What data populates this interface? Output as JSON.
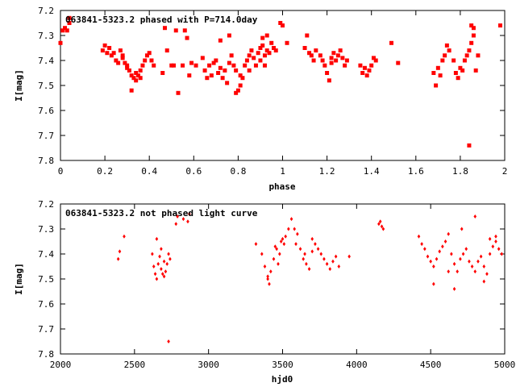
{
  "chart_data": [
    {
      "type": "scatter",
      "title": "063841-5323.2 phased with P=714.0day",
      "xlabel": "phase",
      "ylabel": "I[mag]",
      "xlim": [
        0,
        2
      ],
      "ylim": [
        7.2,
        7.8
      ],
      "y_inverted": true,
      "grid": false,
      "legend": "none",
      "marker": "filled-square-large",
      "color": "#ff0000",
      "x_ticks": [
        "0",
        "0.2",
        "0.4",
        "0.6",
        "0.8",
        "1",
        "1.2",
        "1.4",
        "1.6",
        "1.8",
        "2"
      ],
      "y_ticks": [
        "7.2",
        "7.3",
        "7.4",
        "7.5",
        "7.6",
        "7.7",
        "7.8"
      ],
      "points": [
        [
          0.0,
          7.33
        ],
        [
          0.01,
          7.28
        ],
        [
          0.02,
          7.27
        ],
        [
          0.03,
          7.28
        ],
        [
          0.04,
          7.25
        ],
        [
          0.04,
          7.23
        ],
        [
          0.19,
          7.36
        ],
        [
          0.2,
          7.34
        ],
        [
          0.21,
          7.37
        ],
        [
          0.22,
          7.35
        ],
        [
          0.23,
          7.38
        ],
        [
          0.24,
          7.37
        ],
        [
          0.25,
          7.4
        ],
        [
          0.26,
          7.41
        ],
        [
          0.27,
          7.36
        ],
        [
          0.28,
          7.39
        ],
        [
          0.29,
          7.41
        ],
        [
          0.3,
          7.43
        ],
        [
          0.31,
          7.44
        ],
        [
          0.32,
          7.46
        ],
        [
          0.33,
          7.47
        ],
        [
          0.34,
          7.48
        ],
        [
          0.35,
          7.46
        ],
        [
          0.36,
          7.44
        ],
        [
          0.37,
          7.42
        ],
        [
          0.38,
          7.4
        ],
        [
          0.39,
          7.38
        ],
        [
          0.4,
          7.37
        ],
        [
          0.41,
          7.4
        ],
        [
          0.42,
          7.42
        ],
        [
          0.32,
          7.52
        ],
        [
          0.34,
          7.45
        ],
        [
          0.36,
          7.47
        ],
        [
          0.3,
          7.42
        ],
        [
          0.28,
          7.38
        ],
        [
          0.46,
          7.45
        ],
        [
          0.47,
          7.27
        ],
        [
          0.48,
          7.36
        ],
        [
          0.5,
          7.42
        ],
        [
          0.51,
          7.42
        ],
        [
          0.52,
          7.28
        ],
        [
          0.53,
          7.53
        ],
        [
          0.55,
          7.42
        ],
        [
          0.56,
          7.28
        ],
        [
          0.57,
          7.31
        ],
        [
          0.58,
          7.46
        ],
        [
          0.59,
          7.41
        ],
        [
          0.61,
          7.42
        ],
        [
          0.64,
          7.39
        ],
        [
          0.65,
          7.44
        ],
        [
          0.66,
          7.47
        ],
        [
          0.67,
          7.42
        ],
        [
          0.68,
          7.46
        ],
        [
          0.69,
          7.41
        ],
        [
          0.7,
          7.4
        ],
        [
          0.71,
          7.45
        ],
        [
          0.72,
          7.43
        ],
        [
          0.73,
          7.47
        ],
        [
          0.74,
          7.44
        ],
        [
          0.75,
          7.49
        ],
        [
          0.76,
          7.41
        ],
        [
          0.77,
          7.38
        ],
        [
          0.78,
          7.42
        ],
        [
          0.79,
          7.44
        ],
        [
          0.8,
          7.52
        ],
        [
          0.81,
          7.5
        ],
        [
          0.82,
          7.47
        ],
        [
          0.83,
          7.42
        ],
        [
          0.84,
          7.4
        ],
        [
          0.85,
          7.38
        ],
        [
          0.86,
          7.36
        ],
        [
          0.87,
          7.39
        ],
        [
          0.88,
          7.42
        ],
        [
          0.89,
          7.37
        ],
        [
          0.9,
          7.35
        ],
        [
          0.91,
          7.34
        ],
        [
          0.92,
          7.38
        ],
        [
          0.93,
          7.36
        ],
        [
          0.94,
          7.37
        ],
        [
          0.95,
          7.33
        ],
        [
          0.96,
          7.35
        ],
        [
          0.97,
          7.36
        ],
        [
          0.72,
          7.32
        ],
        [
          0.76,
          7.3
        ],
        [
          0.79,
          7.53
        ],
        [
          0.81,
          7.46
        ],
        [
          0.85,
          7.44
        ],
        [
          0.9,
          7.4
        ],
        [
          0.93,
          7.3
        ],
        [
          0.92,
          7.42
        ],
        [
          0.91,
          7.31
        ],
        [
          0.99,
          7.25
        ],
        [
          1.0,
          7.26
        ],
        [
          1.02,
          7.33
        ],
        [
          1.1,
          7.35
        ],
        [
          1.11,
          7.3
        ],
        [
          1.12,
          7.37
        ],
        [
          1.13,
          7.38
        ],
        [
          1.14,
          7.4
        ],
        [
          1.15,
          7.36
        ],
        [
          1.17,
          7.38
        ],
        [
          1.18,
          7.4
        ],
        [
          1.19,
          7.42
        ],
        [
          1.2,
          7.45
        ],
        [
          1.21,
          7.48
        ],
        [
          1.22,
          7.39
        ],
        [
          1.23,
          7.37
        ],
        [
          1.24,
          7.4
        ],
        [
          1.25,
          7.38
        ],
        [
          1.26,
          7.36
        ],
        [
          1.27,
          7.39
        ],
        [
          1.28,
          7.42
        ],
        [
          1.29,
          7.4
        ],
        [
          1.22,
          7.41
        ],
        [
          1.35,
          7.42
        ],
        [
          1.36,
          7.45
        ],
        [
          1.37,
          7.43
        ],
        [
          1.38,
          7.46
        ],
        [
          1.39,
          7.44
        ],
        [
          1.4,
          7.42
        ],
        [
          1.41,
          7.39
        ],
        [
          1.42,
          7.4
        ],
        [
          1.49,
          7.33
        ],
        [
          1.52,
          7.41
        ],
        [
          1.68,
          7.45
        ],
        [
          1.69,
          7.5
        ],
        [
          1.7,
          7.43
        ],
        [
          1.71,
          7.46
        ],
        [
          1.72,
          7.4
        ],
        [
          1.73,
          7.38
        ],
        [
          1.74,
          7.34
        ],
        [
          1.75,
          7.36
        ],
        [
          1.77,
          7.4
        ],
        [
          1.78,
          7.45
        ],
        [
          1.79,
          7.47
        ],
        [
          1.8,
          7.43
        ],
        [
          1.81,
          7.44
        ],
        [
          1.82,
          7.4
        ],
        [
          1.83,
          7.38
        ],
        [
          1.84,
          7.36
        ],
        [
          1.85,
          7.26
        ],
        [
          1.86,
          7.3
        ],
        [
          1.87,
          7.44
        ],
        [
          1.88,
          7.38
        ],
        [
          1.84,
          7.74
        ],
        [
          1.85,
          7.33
        ],
        [
          1.86,
          7.27
        ],
        [
          1.98,
          7.26
        ]
      ]
    },
    {
      "type": "scatter",
      "title": "063841-5323.2 not phased light curve",
      "xlabel": "hjd0",
      "ylabel": "I[mag]",
      "xlim": [
        2000,
        5000
      ],
      "ylim": [
        7.2,
        7.8
      ],
      "y_inverted": true,
      "grid": false,
      "legend": "none",
      "marker": "diamond-small",
      "color": "#ff0000",
      "x_ticks": [
        "2000",
        "2500",
        "3000",
        "3500",
        "4000",
        "4500",
        "5000"
      ],
      "y_ticks": [
        "7.2",
        "7.3",
        "7.4",
        "7.5",
        "7.6",
        "7.7",
        "7.8"
      ],
      "points": [
        [
          2390,
          7.42
        ],
        [
          2400,
          7.39
        ],
        [
          2430,
          7.33
        ],
        [
          2620,
          7.4
        ],
        [
          2630,
          7.45
        ],
        [
          2640,
          7.48
        ],
        [
          2650,
          7.5
        ],
        [
          2660,
          7.44
        ],
        [
          2670,
          7.41
        ],
        [
          2680,
          7.46
        ],
        [
          2690,
          7.48
        ],
        [
          2700,
          7.43
        ],
        [
          2710,
          7.47
        ],
        [
          2720,
          7.44
        ],
        [
          2730,
          7.4
        ],
        [
          2740,
          7.42
        ],
        [
          2650,
          7.34
        ],
        [
          2680,
          7.38
        ],
        [
          2700,
          7.49
        ],
        [
          2730,
          7.75
        ],
        [
          2780,
          7.28
        ],
        [
          2790,
          7.25
        ],
        [
          2830,
          7.26
        ],
        [
          2860,
          7.27
        ],
        [
          2870,
          7.24
        ],
        [
          3320,
          7.36
        ],
        [
          3360,
          7.4
        ],
        [
          3380,
          7.45
        ],
        [
          3400,
          7.49
        ],
        [
          3410,
          7.52
        ],
        [
          3420,
          7.47
        ],
        [
          3440,
          7.42
        ],
        [
          3460,
          7.38
        ],
        [
          3480,
          7.4
        ],
        [
          3490,
          7.35
        ],
        [
          3500,
          7.34
        ],
        [
          3510,
          7.36
        ],
        [
          3520,
          7.33
        ],
        [
          3540,
          7.3
        ],
        [
          3560,
          7.26
        ],
        [
          3580,
          7.3
        ],
        [
          3600,
          7.32
        ],
        [
          3620,
          7.38
        ],
        [
          3640,
          7.42
        ],
        [
          3650,
          7.4
        ],
        [
          3660,
          7.44
        ],
        [
          3680,
          7.46
        ],
        [
          3700,
          7.39
        ],
        [
          3720,
          7.36
        ],
        [
          3740,
          7.38
        ],
        [
          3760,
          7.4
        ],
        [
          3780,
          7.42
        ],
        [
          3800,
          7.44
        ],
        [
          3820,
          7.46
        ],
        [
          3840,
          7.43
        ],
        [
          3860,
          7.41
        ],
        [
          3880,
          7.45
        ],
        [
          3400,
          7.5
        ],
        [
          3450,
          7.37
        ],
        [
          3470,
          7.44
        ],
        [
          3590,
          7.36
        ],
        [
          3700,
          7.34
        ],
        [
          3950,
          7.41
        ],
        [
          4150,
          7.28
        ],
        [
          4160,
          7.27
        ],
        [
          4170,
          7.29
        ],
        [
          4180,
          7.3
        ],
        [
          4420,
          7.33
        ],
        [
          4440,
          7.36
        ],
        [
          4460,
          7.38
        ],
        [
          4480,
          7.41
        ],
        [
          4500,
          7.43
        ],
        [
          4520,
          7.45
        ],
        [
          4540,
          7.42
        ],
        [
          4560,
          7.39
        ],
        [
          4580,
          7.37
        ],
        [
          4600,
          7.35
        ],
        [
          4620,
          7.32
        ],
        [
          4640,
          7.4
        ],
        [
          4660,
          7.44
        ],
        [
          4680,
          7.47
        ],
        [
          4700,
          7.42
        ],
        [
          4720,
          7.4
        ],
        [
          4740,
          7.38
        ],
        [
          4760,
          7.43
        ],
        [
          4780,
          7.45
        ],
        [
          4800,
          7.47
        ],
        [
          4820,
          7.43
        ],
        [
          4840,
          7.41
        ],
        [
          4860,
          7.45
        ],
        [
          4880,
          7.48
        ],
        [
          4900,
          7.4
        ],
        [
          4920,
          7.37
        ],
        [
          4940,
          7.35
        ],
        [
          4960,
          7.38
        ],
        [
          4980,
          7.4
        ],
        [
          4520,
          7.52
        ],
        [
          4620,
          7.47
        ],
        [
          4660,
          7.54
        ],
        [
          4710,
          7.3
        ],
        [
          4800,
          7.25
        ],
        [
          4860,
          7.51
        ],
        [
          4900,
          7.34
        ],
        [
          4940,
          7.33
        ]
      ]
    }
  ]
}
